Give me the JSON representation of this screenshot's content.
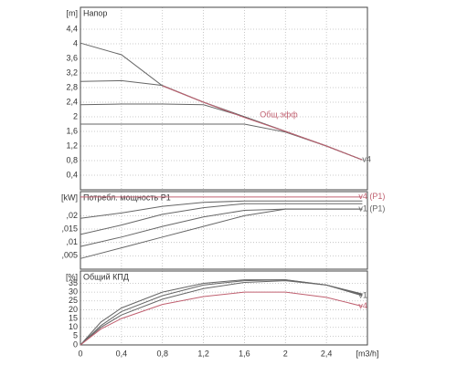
{
  "chart_data": [
    {
      "type": "line",
      "title": "Напор",
      "ylabel": "[m]",
      "x": [
        0,
        0.4,
        0.8,
        1.2,
        1.6,
        2.0,
        2.4,
        2.75
      ],
      "xlim": [
        0,
        2.8
      ],
      "xticks": [
        0,
        0.4,
        0.8,
        1.2,
        1.6,
        2,
        2.4
      ],
      "ylim": [
        0,
        5
      ],
      "yticks": [
        {
          "value": 0.4,
          "label": "0,4"
        },
        {
          "value": 0.8,
          "label": "0,8"
        },
        {
          "value": 1.2,
          "label": "1,2"
        },
        {
          "value": 1.6,
          "label": "1,6"
        },
        2,
        {
          "value": 2.4,
          "label": "2,4"
        },
        {
          "value": 2.8,
          "label": "2,8"
        },
        {
          "value": 3.2,
          "label": "3,2"
        },
        {
          "value": 3.6,
          "label": "3,6"
        },
        4,
        {
          "value": 4.4,
          "label": "4,4"
        }
      ],
      "grid": true,
      "series": [
        {
          "color": "#666666",
          "values": [
            4.02,
            3.7,
            2.85,
            2.4,
            2.0,
            1.6,
            1.2,
            0.82
          ]
        },
        {
          "color": "#666666",
          "values": [
            2.97,
            2.99,
            2.86,
            2.4,
            2.0,
            1.6,
            1.2,
            0.82
          ]
        },
        {
          "color": "#666666",
          "values": [
            2.33,
            2.35,
            2.35,
            2.33,
            2.0,
            1.6,
            1.2,
            0.82
          ]
        },
        {
          "color": "#666666",
          "values": [
            1.8,
            1.8,
            1.8,
            1.8,
            1.8,
            1.58,
            1.2,
            0.82
          ]
        },
        {
          "color": "#c06070",
          "values": [
            null,
            null,
            2.85,
            2.4,
            1.98,
            1.6,
            1.2,
            0.82
          ]
        }
      ],
      "annotations": [
        {
          "text": "Общ.эфф",
          "x": 1.75,
          "y": 2.05,
          "color": "#c06070"
        },
        {
          "text": "v4",
          "x": 2.75,
          "y": 0.82,
          "color": "#555555"
        }
      ]
    },
    {
      "type": "line",
      "title": "Потребл. мощность P1",
      "ylabel": "[kW]",
      "x": [
        0,
        0.4,
        0.8,
        1.2,
        1.6,
        2.0,
        2.4,
        2.75
      ],
      "xlim": [
        0,
        2.8
      ],
      "xticks": [
        0,
        0.4,
        0.8,
        1.2,
        1.6,
        2,
        2.4
      ],
      "ylim": [
        0,
        0.029
      ],
      "yticks": [
        {
          "value": 0.005,
          "label": ",005"
        },
        {
          "value": 0.01,
          "label": ",01"
        },
        {
          "value": 0.015,
          "label": ",015"
        },
        {
          "value": 0.02,
          "label": ",02"
        }
      ],
      "grid": true,
      "series": [
        {
          "name": "v4 (P1)",
          "color": "#c06070",
          "values": [
            0.027,
            0.027,
            0.027,
            0.027,
            0.027,
            0.027,
            0.027,
            0.027
          ]
        },
        {
          "color": "#666666",
          "values": [
            0.019,
            0.021,
            0.0235,
            0.025,
            0.0255,
            0.0255,
            0.0255,
            0.0255
          ]
        },
        {
          "color": "#666666",
          "values": [
            0.013,
            0.0165,
            0.0205,
            0.023,
            0.0245,
            0.0245,
            0.0245,
            0.0245
          ]
        },
        {
          "name": "v1 (P1)",
          "color": "#666666",
          "values": [
            0.0085,
            0.012,
            0.016,
            0.0195,
            0.022,
            0.0225,
            0.0225,
            0.0225
          ]
        },
        {
          "color": "#666666",
          "values": [
            0.004,
            0.008,
            0.012,
            0.016,
            0.02,
            0.0225,
            0.0225,
            0.0225
          ]
        }
      ]
    },
    {
      "type": "line",
      "title": "Общий КПД",
      "ylabel": "[%]",
      "xlabel": "[m3/h]",
      "x": [
        0,
        0.2,
        0.4,
        0.8,
        1.2,
        1.6,
        2.0,
        2.4,
        2.75
      ],
      "xlim": [
        0,
        2.8
      ],
      "xticks": [
        0,
        {
          "value": 0.4,
          "label": "0,4"
        },
        {
          "value": 0.8,
          "label": "0,8"
        },
        {
          "value": 1.2,
          "label": "1,2"
        },
        {
          "value": 1.6,
          "label": "1,6"
        },
        2,
        {
          "value": 2.4,
          "label": "2,4"
        }
      ],
      "ylim": [
        0,
        42
      ],
      "yticks": [
        0,
        5,
        10,
        15,
        20,
        25,
        30,
        35
      ],
      "grid": true,
      "series": [
        {
          "color": "#666666",
          "values": [
            0,
            13,
            21,
            30,
            35,
            37,
            37,
            34,
            29
          ]
        },
        {
          "color": "#666666",
          "values": [
            0,
            11,
            19,
            28,
            34,
            36.5,
            37,
            34,
            28.5
          ]
        },
        {
          "name": "v1",
          "color": "#666666",
          "values": [
            0,
            10,
            17,
            26,
            32,
            35.5,
            36.5,
            34,
            28
          ]
        },
        {
          "name": "v4",
          "color": "#c06070",
          "values": [
            0,
            9,
            15,
            23,
            27.5,
            30,
            30,
            27,
            22
          ]
        }
      ]
    }
  ]
}
